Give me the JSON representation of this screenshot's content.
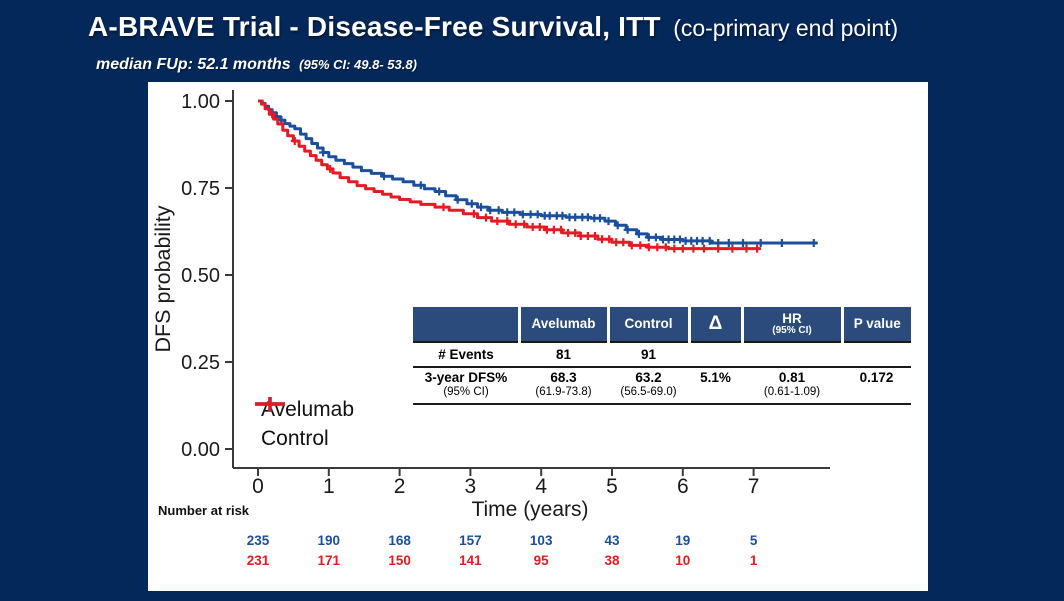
{
  "slide": {
    "title_main": "A-BRAVE Trial - Disease-Free Survival, ITT",
    "title_suffix": "(co-primary end point)",
    "subtitle_main": "median FUp: 52.1 months",
    "subtitle_ci": "(95% CI: 49.8- 53.8)"
  },
  "colors": {
    "background": "#04285a",
    "panel": "#ffffff",
    "avelumab": "#1b4f9d",
    "control": "#e51a22",
    "table_header_bg": "#2b4b7c",
    "axis": "#3a3a3a",
    "text": "#1a1a1a"
  },
  "chart_data": {
    "type": "line",
    "subtype": "kaplan-meier-step",
    "xlabel": "Time (years)",
    "ylabel": "DFS probability",
    "xlim": [
      0,
      8.1
    ],
    "ylim": [
      0,
      1
    ],
    "xticks": [
      "0",
      "1",
      "2",
      "3",
      "4",
      "5",
      "6",
      "7"
    ],
    "yticks": [
      "0.00",
      "0.25",
      "0.50",
      "0.75",
      "1.00"
    ],
    "ytick_values": [
      0,
      0.25,
      0.5,
      0.75,
      1.0
    ],
    "grid": false,
    "legend_position": "inside-bottom-left",
    "series": [
      {
        "name": "Avelumab",
        "color": "#1b4f9d",
        "steps": [
          [
            0.0,
            1.0
          ],
          [
            0.06,
            0.993
          ],
          [
            0.1,
            0.985
          ],
          [
            0.15,
            0.975
          ],
          [
            0.2,
            0.966
          ],
          [
            0.26,
            0.955
          ],
          [
            0.32,
            0.945
          ],
          [
            0.38,
            0.935
          ],
          [
            0.45,
            0.928
          ],
          [
            0.52,
            0.92
          ],
          [
            0.6,
            0.905
          ],
          [
            0.68,
            0.892
          ],
          [
            0.76,
            0.878
          ],
          [
            0.84,
            0.865
          ],
          [
            0.92,
            0.852
          ],
          [
            1.0,
            0.84
          ],
          [
            1.1,
            0.83
          ],
          [
            1.22,
            0.82
          ],
          [
            1.34,
            0.81
          ],
          [
            1.46,
            0.8
          ],
          [
            1.6,
            0.792
          ],
          [
            1.75,
            0.784
          ],
          [
            1.9,
            0.776
          ],
          [
            2.05,
            0.768
          ],
          [
            2.2,
            0.758
          ],
          [
            2.35,
            0.748
          ],
          [
            2.5,
            0.74
          ],
          [
            2.65,
            0.728
          ],
          [
            2.8,
            0.716
          ],
          [
            2.95,
            0.705
          ],
          [
            3.1,
            0.695
          ],
          [
            3.25,
            0.686
          ],
          [
            3.45,
            0.68
          ],
          [
            3.7,
            0.674
          ],
          [
            4.0,
            0.67
          ],
          [
            4.35,
            0.666
          ],
          [
            4.7,
            0.663
          ],
          [
            4.9,
            0.655
          ],
          [
            5.05,
            0.643
          ],
          [
            5.2,
            0.63
          ],
          [
            5.35,
            0.618
          ],
          [
            5.5,
            0.608
          ],
          [
            5.7,
            0.602
          ],
          [
            6.0,
            0.598
          ],
          [
            6.4,
            0.592
          ],
          [
            7.9,
            0.592
          ]
        ],
        "censor_times": [
          0.33,
          0.92,
          1.78,
          2.3,
          2.56,
          2.82,
          3.02,
          3.15,
          3.28,
          3.4,
          3.52,
          3.62,
          3.74,
          3.85,
          3.95,
          4.05,
          4.12,
          4.22,
          4.3,
          4.4,
          4.48,
          4.58,
          4.66,
          4.75,
          4.83,
          4.95,
          5.08,
          5.22,
          5.38,
          5.52,
          5.62,
          5.72,
          5.8,
          5.88,
          5.96,
          6.04,
          6.12,
          6.2,
          6.28,
          6.38,
          6.5,
          6.65,
          6.85,
          7.1,
          7.4,
          7.85
        ]
      },
      {
        "name": "Control",
        "color": "#e51a22",
        "steps": [
          [
            0.0,
            1.0
          ],
          [
            0.05,
            0.991
          ],
          [
            0.1,
            0.978
          ],
          [
            0.16,
            0.962
          ],
          [
            0.22,
            0.948
          ],
          [
            0.28,
            0.934
          ],
          [
            0.35,
            0.916
          ],
          [
            0.42,
            0.9
          ],
          [
            0.5,
            0.885
          ],
          [
            0.58,
            0.87
          ],
          [
            0.66,
            0.856
          ],
          [
            0.74,
            0.843
          ],
          [
            0.82,
            0.83
          ],
          [
            0.9,
            0.817
          ],
          [
            0.98,
            0.805
          ],
          [
            1.06,
            0.793
          ],
          [
            1.16,
            0.78
          ],
          [
            1.28,
            0.768
          ],
          [
            1.4,
            0.757
          ],
          [
            1.52,
            0.748
          ],
          [
            1.64,
            0.74
          ],
          [
            1.76,
            0.732
          ],
          [
            1.88,
            0.724
          ],
          [
            2.0,
            0.717
          ],
          [
            2.15,
            0.71
          ],
          [
            2.3,
            0.703
          ],
          [
            2.5,
            0.695
          ],
          [
            2.7,
            0.686
          ],
          [
            2.9,
            0.676
          ],
          [
            3.1,
            0.665
          ],
          [
            3.3,
            0.655
          ],
          [
            3.55,
            0.646
          ],
          [
            3.8,
            0.638
          ],
          [
            4.05,
            0.63
          ],
          [
            4.3,
            0.621
          ],
          [
            4.55,
            0.612
          ],
          [
            4.8,
            0.603
          ],
          [
            5.0,
            0.594
          ],
          [
            5.25,
            0.585
          ],
          [
            5.5,
            0.58
          ],
          [
            5.8,
            0.576
          ],
          [
            7.1,
            0.576
          ]
        ],
        "censor_times": [
          0.2,
          0.52,
          1.02,
          2.62,
          3.05,
          3.22,
          3.38,
          3.52,
          3.64,
          3.76,
          3.88,
          3.98,
          4.08,
          4.18,
          4.28,
          4.38,
          4.48,
          4.56,
          4.66,
          4.76,
          4.86,
          4.96,
          5.06,
          5.16,
          5.28,
          5.4,
          5.52,
          5.64,
          5.76,
          5.88,
          6.0,
          6.15,
          6.3,
          6.5,
          6.7,
          6.9,
          7.05
        ]
      }
    ]
  },
  "stats_table": {
    "columns": [
      {
        "main": "",
        "sub": ""
      },
      {
        "main": "Avelumab",
        "sub": ""
      },
      {
        "main": "Control",
        "sub": ""
      },
      {
        "main": "Δ",
        "sub": ""
      },
      {
        "main": "HR",
        "sub": "(95% CI)"
      },
      {
        "main": "P value",
        "sub": ""
      }
    ],
    "rows": [
      {
        "cells": [
          {
            "main": "# Events",
            "sub": ""
          },
          {
            "main": "81",
            "sub": ""
          },
          {
            "main": "91",
            "sub": ""
          },
          {
            "main": "",
            "sub": ""
          },
          {
            "main": "",
            "sub": ""
          },
          {
            "main": "",
            "sub": ""
          }
        ]
      },
      {
        "cells": [
          {
            "main": "3-year DFS%",
            "sub": "(95% CI)"
          },
          {
            "main": "68.3",
            "sub": "(61.9-73.8)"
          },
          {
            "main": "63.2",
            "sub": "(56.5-69.0)"
          },
          {
            "main": "5.1%",
            "sub": ""
          },
          {
            "main": "0.81",
            "sub": "(0.61-1.09)"
          },
          {
            "main": "0.172",
            "sub": ""
          }
        ]
      }
    ]
  },
  "number_at_risk": {
    "label": "Number at risk",
    "rows": [
      {
        "name": "Avelumab",
        "color": "#1b4f9d",
        "counts": [
          "235",
          "190",
          "168",
          "157",
          "103",
          "43",
          "19",
          "5"
        ]
      },
      {
        "name": "Control",
        "color": "#e51a22",
        "counts": [
          "231",
          "171",
          "150",
          "141",
          "95",
          "38",
          "10",
          "1"
        ]
      }
    ]
  }
}
